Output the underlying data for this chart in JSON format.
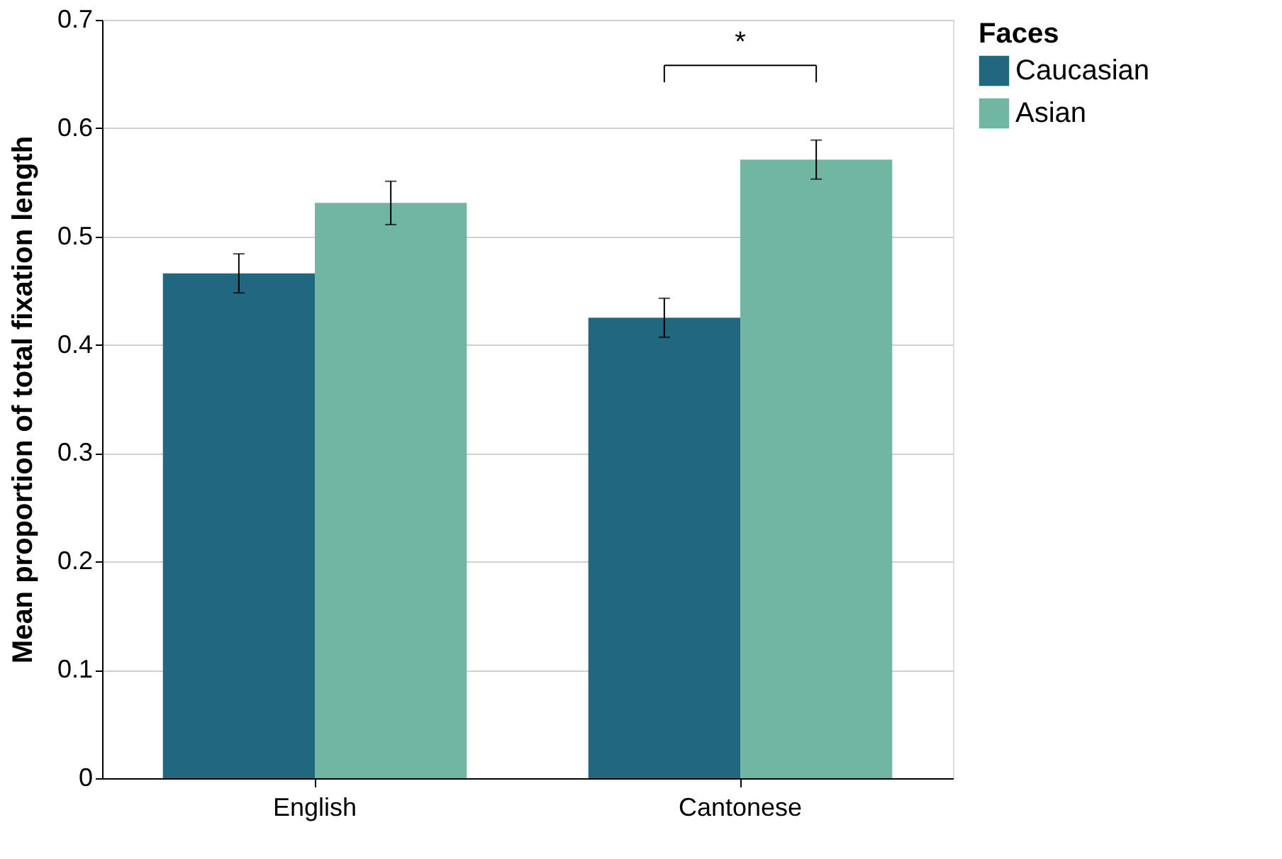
{
  "chart_data": {
    "type": "bar",
    "categories": [
      "English",
      "Cantonese"
    ],
    "series": [
      {
        "name": "Caucasian",
        "color": "#216780",
        "values": [
          0.466,
          0.425
        ],
        "errors": [
          0.018,
          0.018
        ]
      },
      {
        "name": "Asian",
        "color": "#70b6a2",
        "values": [
          0.531,
          0.571
        ],
        "errors": [
          0.02,
          0.018
        ]
      }
    ],
    "ylabel": "Mean proportion of  total  fixation length",
    "legend_title": "Faces",
    "legend": "top right",
    "ylim": [
      0,
      0.7
    ],
    "yticks": [
      0,
      0.1,
      0.2,
      0.3,
      0.4,
      0.5,
      0.6,
      0.7
    ],
    "grid": "y",
    "annotations": [
      "*"
    ]
  }
}
